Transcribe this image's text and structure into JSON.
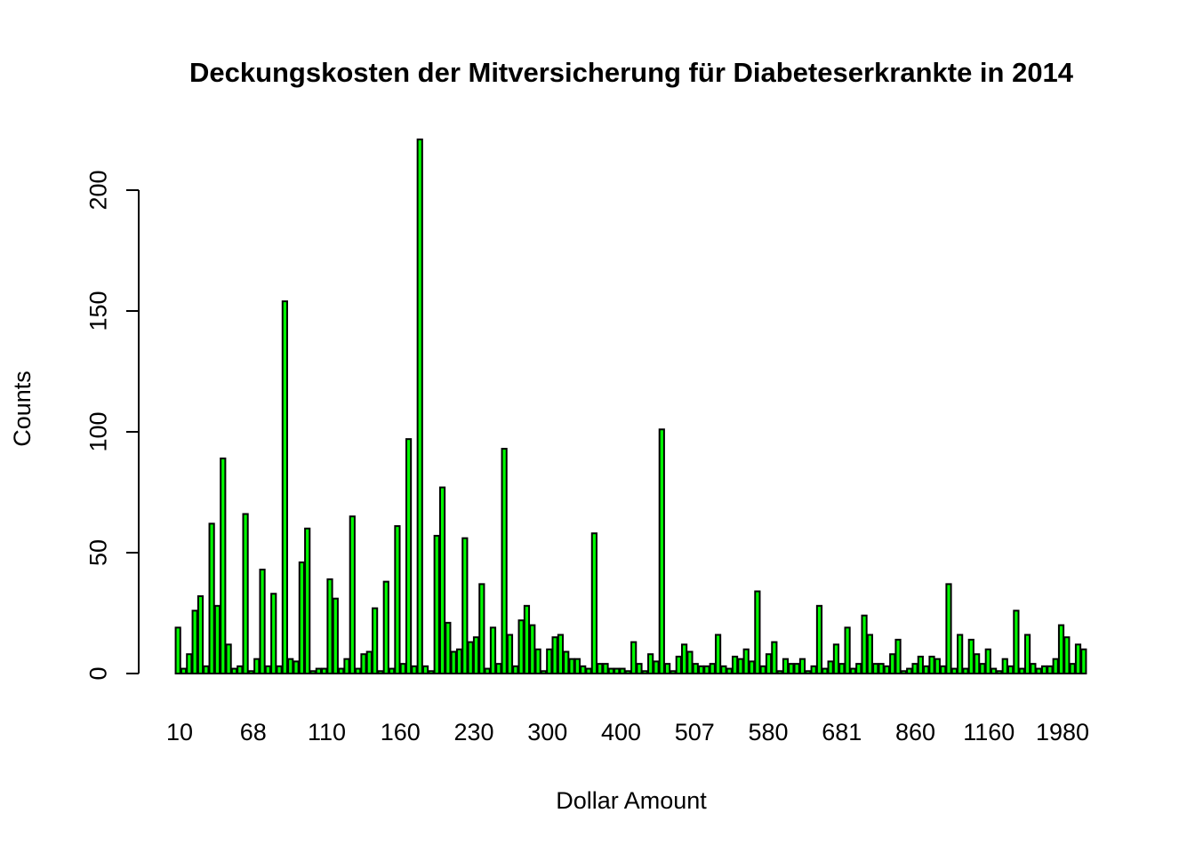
{
  "chart_data": {
    "type": "bar",
    "title": "Deckungskosten der Mitversicherung für Diabeteserkrankte in 2014",
    "xlabel": "Dollar Amount",
    "ylabel": "Counts",
    "ylim": [
      0,
      220
    ],
    "y_ticks": [
      0,
      50,
      100,
      150,
      200
    ],
    "x_tick_labels": [
      "10",
      "68",
      "110",
      "160",
      "230",
      "300",
      "400",
      "507",
      "580",
      "681",
      "860",
      "1160",
      "1980"
    ],
    "bar_color": "#00ff00",
    "values": [
      19,
      2,
      8,
      26,
      32,
      3,
      62,
      28,
      89,
      12,
      2,
      3,
      66,
      1,
      6,
      43,
      3,
      33,
      3,
      154,
      6,
      5,
      46,
      60,
      1,
      2,
      2,
      39,
      31,
      2,
      6,
      65,
      2,
      8,
      9,
      27,
      1,
      38,
      2,
      61,
      4,
      97,
      3,
      221,
      3,
      1,
      57,
      77,
      21,
      9,
      10,
      56,
      13,
      15,
      37,
      2,
      19,
      4,
      93,
      16,
      3,
      22,
      28,
      20,
      10,
      1,
      10,
      15,
      16,
      9,
      6,
      6,
      3,
      2,
      58,
      4,
      4,
      2,
      2,
      2,
      1,
      13,
      4,
      1,
      8,
      5,
      101,
      4,
      1,
      7,
      12,
      9,
      4,
      3,
      3,
      4,
      16,
      3,
      2,
      7,
      6,
      10,
      5,
      34,
      3,
      8,
      13,
      1,
      6,
      4,
      4,
      6,
      1,
      3,
      28,
      2,
      5,
      12,
      4,
      19,
      2,
      4,
      24,
      16,
      4,
      4,
      3,
      8,
      14,
      1,
      2,
      4,
      7,
      3,
      7,
      6,
      3,
      37,
      2,
      16,
      2,
      14,
      8,
      4,
      10,
      2,
      1,
      6,
      3,
      26,
      2,
      16,
      4,
      2,
      3,
      3,
      6,
      20,
      15,
      4,
      12,
      10
    ]
  }
}
